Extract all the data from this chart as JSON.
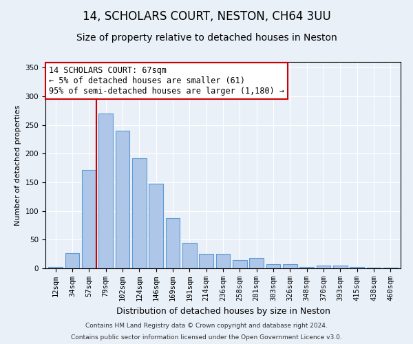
{
  "title1": "14, SCHOLARS COURT, NESTON, CH64 3UU",
  "title2": "Size of property relative to detached houses in Neston",
  "xlabel": "Distribution of detached houses by size in Neston",
  "ylabel": "Number of detached properties",
  "bar_labels": [
    "12sqm",
    "34sqm",
    "57sqm",
    "79sqm",
    "102sqm",
    "124sqm",
    "146sqm",
    "169sqm",
    "191sqm",
    "214sqm",
    "236sqm",
    "258sqm",
    "281sqm",
    "303sqm",
    "326sqm",
    "348sqm",
    "370sqm",
    "393sqm",
    "415sqm",
    "438sqm",
    "460sqm"
  ],
  "bar_values": [
    2,
    26,
    172,
    270,
    240,
    192,
    148,
    88,
    45,
    25,
    25,
    14,
    18,
    7,
    7,
    3,
    5,
    5,
    3,
    1,
    1
  ],
  "bar_color": "#aec6e8",
  "bar_edge_color": "#5b9bd5",
  "vline_x_index": 2,
  "vline_color": "#cc0000",
  "annotation_text": "14 SCHOLARS COURT: 67sqm\n← 5% of detached houses are smaller (61)\n95% of semi-detached houses are larger (1,180) →",
  "annotation_box_color": "#ffffff",
  "annotation_box_edge": "#cc0000",
  "ylim": [
    0,
    360
  ],
  "yticks": [
    0,
    50,
    100,
    150,
    200,
    250,
    300,
    350
  ],
  "bg_color": "#eaf0f8",
  "plot_bg_color": "#eaf0f8",
  "footer1": "Contains HM Land Registry data © Crown copyright and database right 2024.",
  "footer2": "Contains public sector information licensed under the Open Government Licence v3.0.",
  "title1_fontsize": 12,
  "title2_fontsize": 10,
  "xlabel_fontsize": 9,
  "ylabel_fontsize": 8,
  "tick_fontsize": 7.5,
  "annotation_fontsize": 8.5,
  "footer_fontsize": 6.5
}
